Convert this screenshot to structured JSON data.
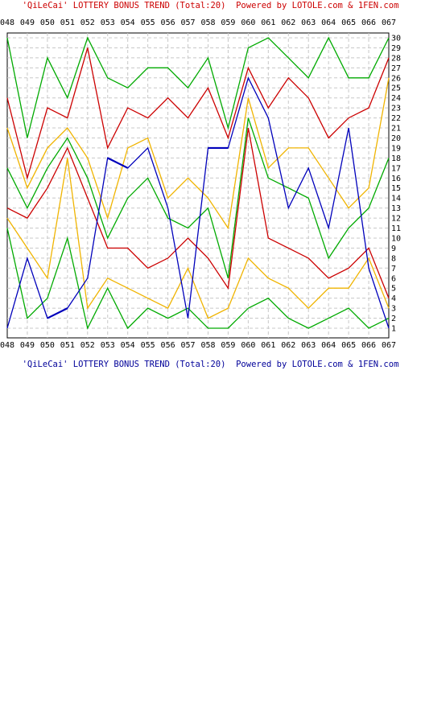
{
  "header": {
    "title_top": "'QiLeCai' LOTTERY BONUS TREND (Total:20)  Powered by LOTOLE.com & 1FEN.com",
    "title_bottom": "'QiLeCai' LOTTERY BONUS TREND (Total:20)  Powered by LOTOLE.com & 1FEN.com"
  },
  "chart_data": {
    "type": "line",
    "title": "'QiLeCai' LOTTERY BONUS TREND (Total:20)  Powered by LOTOLE.com & 1FEN.com",
    "xlabel": "",
    "ylabel": "",
    "categories": [
      "048",
      "049",
      "050",
      "051",
      "052",
      "053",
      "054",
      "055",
      "056",
      "057",
      "058",
      "059",
      "060",
      "061",
      "062",
      "063",
      "064",
      "065",
      "066",
      "067"
    ],
    "ylim": [
      1,
      30
    ],
    "y_ticks": [
      1,
      2,
      3,
      4,
      5,
      6,
      7,
      8,
      9,
      10,
      11,
      12,
      13,
      14,
      15,
      16,
      17,
      18,
      19,
      20,
      21,
      22,
      23,
      24,
      25,
      26,
      27,
      28,
      29,
      30
    ],
    "grid": true,
    "legend": "none",
    "series": [
      {
        "color": "#00aa00",
        "values": [
          11,
          2,
          4,
          10,
          1,
          5,
          1,
          3,
          2,
          3,
          1,
          1,
          3,
          4,
          2,
          1,
          2,
          3,
          1,
          2
        ]
      },
      {
        "color": "#f0b400",
        "values": [
          12,
          9,
          6,
          18,
          3,
          6,
          5,
          4,
          3,
          7,
          2,
          3,
          8,
          6,
          5,
          3,
          5,
          5,
          8,
          3
        ]
      },
      {
        "color": "#cc0000",
        "values": [
          13,
          12,
          15,
          19,
          14,
          9,
          9,
          7,
          8,
          10,
          8,
          5,
          21,
          10,
          9,
          8,
          6,
          7,
          9,
          4
        ]
      },
      {
        "color": "#00aa00",
        "values": [
          17,
          13,
          17,
          20,
          16,
          10,
          14,
          16,
          12,
          11,
          13,
          6,
          22,
          16,
          15,
          14,
          8,
          11,
          13,
          18
        ]
      },
      {
        "color": "#f0b400",
        "values": [
          21,
          15,
          19,
          21,
          18,
          12,
          19,
          20,
          14,
          16,
          14,
          11,
          24,
          17,
          19,
          19,
          16,
          13,
          15,
          26
        ]
      },
      {
        "color": "#cc0000",
        "values": [
          24,
          16,
          23,
          22,
          29,
          19,
          23,
          22,
          24,
          22,
          25,
          20,
          27,
          23,
          26,
          24,
          20,
          22,
          23,
          28
        ]
      },
      {
        "color": "#00aa00",
        "values": [
          30,
          20,
          28,
          24,
          30,
          26,
          25,
          27,
          27,
          25,
          28,
          21,
          29,
          30,
          28,
          26,
          30,
          26,
          26,
          30
        ]
      },
      {
        "color": "#0000bb",
        "highlight": true,
        "values": [
          1,
          8,
          2,
          3,
          6,
          18,
          17,
          19,
          13,
          2,
          19,
          19,
          26,
          22,
          13,
          17,
          11,
          21,
          7,
          1
        ]
      }
    ]
  }
}
